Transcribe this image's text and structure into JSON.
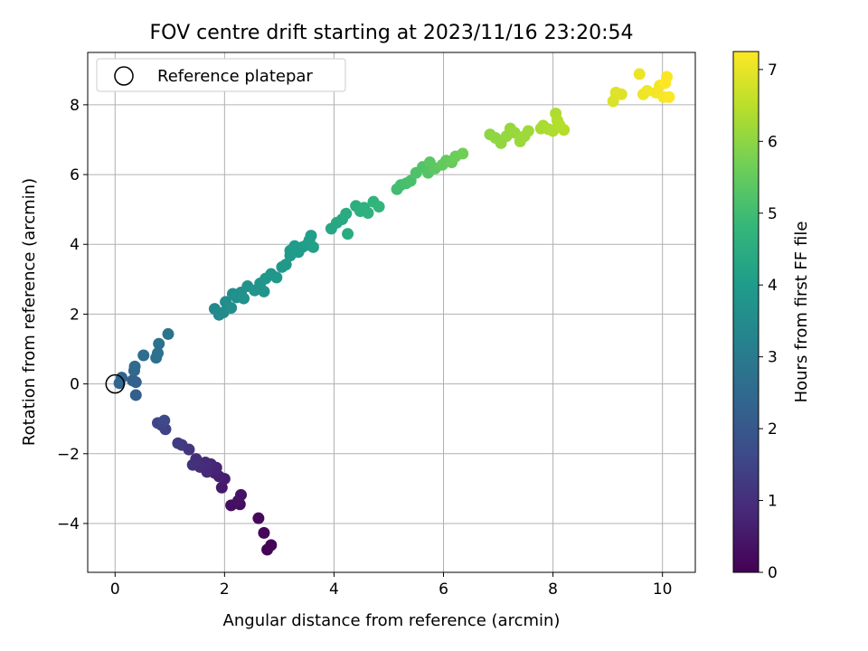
{
  "chart_data": {
    "type": "scatter",
    "title": "FOV centre drift starting at 2023/11/16 23:20:54",
    "xlabel": "Angular distance from reference (arcmin)",
    "ylabel": "Rotation from reference (arcmin)",
    "xlim": [
      -0.5,
      10.6
    ],
    "ylim": [
      -5.4,
      9.5
    ],
    "xticks": [
      0,
      2,
      4,
      6,
      8,
      10
    ],
    "yticks": [
      -4,
      -2,
      0,
      2,
      4,
      6,
      8
    ],
    "xtick_labels": [
      "0",
      "2",
      "4",
      "6",
      "8",
      "10"
    ],
    "ytick_labels": [
      "−4",
      "−2",
      "0",
      "2",
      "4",
      "6",
      "8"
    ],
    "grid": true,
    "legend": {
      "placement": "top-left",
      "entries": [
        "Reference platepar"
      ]
    },
    "reference_point": {
      "x": 0,
      "y": 0,
      "label": "Reference platepar"
    },
    "colorbar": {
      "label": "Hours from first FF file",
      "colormap": "viridis",
      "range": [
        0,
        7.25
      ],
      "ticks": [
        0,
        1,
        2,
        3,
        4,
        5,
        6,
        7
      ],
      "tick_labels": [
        "0",
        "1",
        "2",
        "3",
        "4",
        "5",
        "6",
        "7"
      ]
    },
    "points": [
      {
        "x": 2.78,
        "y": -4.75,
        "h": 0.05
      },
      {
        "x": 2.85,
        "y": -4.62,
        "h": 0.08
      },
      {
        "x": 2.72,
        "y": -4.27,
        "h": 0.12
      },
      {
        "x": 2.62,
        "y": -3.85,
        "h": 0.18
      },
      {
        "x": 2.28,
        "y": -3.45,
        "h": 0.25
      },
      {
        "x": 2.12,
        "y": -3.48,
        "h": 0.3
      },
      {
        "x": 2.25,
        "y": -3.35,
        "h": 0.35
      },
      {
        "x": 2.3,
        "y": -3.18,
        "h": 0.4
      },
      {
        "x": 1.95,
        "y": -2.97,
        "h": 0.5
      },
      {
        "x": 2.0,
        "y": -2.72,
        "h": 0.6
      },
      {
        "x": 1.9,
        "y": -2.65,
        "h": 0.65
      },
      {
        "x": 1.82,
        "y": -2.55,
        "h": 0.7
      },
      {
        "x": 1.85,
        "y": -2.4,
        "h": 0.75
      },
      {
        "x": 1.75,
        "y": -2.3,
        "h": 0.8
      },
      {
        "x": 1.68,
        "y": -2.52,
        "h": 0.85
      },
      {
        "x": 1.65,
        "y": -2.25,
        "h": 0.9
      },
      {
        "x": 1.55,
        "y": -2.38,
        "h": 0.95
      },
      {
        "x": 1.48,
        "y": -2.15,
        "h": 1.0
      },
      {
        "x": 1.42,
        "y": -2.32,
        "h": 1.05
      },
      {
        "x": 1.35,
        "y": -1.88,
        "h": 1.15
      },
      {
        "x": 1.22,
        "y": -1.75,
        "h": 1.25
      },
      {
        "x": 1.15,
        "y": -1.7,
        "h": 1.3
      },
      {
        "x": 0.92,
        "y": -1.3,
        "h": 1.45
      },
      {
        "x": 0.85,
        "y": -1.18,
        "h": 1.5
      },
      {
        "x": 0.78,
        "y": -1.12,
        "h": 1.55
      },
      {
        "x": 0.9,
        "y": -1.05,
        "h": 1.6
      },
      {
        "x": 0.38,
        "y": -0.32,
        "h": 2.2
      },
      {
        "x": 0.38,
        "y": 0.05,
        "h": 2.25
      },
      {
        "x": 0.32,
        "y": 0.1,
        "h": 2.3
      },
      {
        "x": 0.12,
        "y": 0.18,
        "h": 2.35
      },
      {
        "x": 0.08,
        "y": 0.02,
        "h": 2.4
      },
      {
        "x": 0.35,
        "y": 0.38,
        "h": 2.45
      },
      {
        "x": 0.36,
        "y": 0.5,
        "h": 2.5
      },
      {
        "x": 0.52,
        "y": 0.82,
        "h": 2.6
      },
      {
        "x": 0.75,
        "y": 0.75,
        "h": 2.7
      },
      {
        "x": 0.78,
        "y": 0.88,
        "h": 2.72
      },
      {
        "x": 0.8,
        "y": 1.15,
        "h": 2.75
      },
      {
        "x": 0.97,
        "y": 1.43,
        "h": 2.8
      },
      {
        "x": 1.82,
        "y": 2.15,
        "h": 3.4
      },
      {
        "x": 1.9,
        "y": 1.98,
        "h": 3.45
      },
      {
        "x": 1.98,
        "y": 2.05,
        "h": 3.5
      },
      {
        "x": 2.02,
        "y": 2.35,
        "h": 3.55
      },
      {
        "x": 2.12,
        "y": 2.18,
        "h": 3.6
      },
      {
        "x": 2.15,
        "y": 2.58,
        "h": 3.62
      },
      {
        "x": 2.22,
        "y": 2.48,
        "h": 3.65
      },
      {
        "x": 2.3,
        "y": 2.62,
        "h": 3.68
      },
      {
        "x": 2.35,
        "y": 2.45,
        "h": 3.7
      },
      {
        "x": 2.42,
        "y": 2.8,
        "h": 3.72
      },
      {
        "x": 2.55,
        "y": 2.68,
        "h": 3.75
      },
      {
        "x": 2.65,
        "y": 2.88,
        "h": 3.78
      },
      {
        "x": 2.72,
        "y": 2.65,
        "h": 3.8
      },
      {
        "x": 2.75,
        "y": 3.02,
        "h": 3.82
      },
      {
        "x": 2.85,
        "y": 3.15,
        "h": 3.85
      },
      {
        "x": 2.95,
        "y": 3.05,
        "h": 3.88
      },
      {
        "x": 3.05,
        "y": 3.35,
        "h": 3.9
      },
      {
        "x": 3.12,
        "y": 3.42,
        "h": 3.92
      },
      {
        "x": 3.2,
        "y": 3.68,
        "h": 3.95
      },
      {
        "x": 3.2,
        "y": 3.82,
        "h": 3.97
      },
      {
        "x": 3.28,
        "y": 3.95,
        "h": 4.0
      },
      {
        "x": 3.35,
        "y": 3.78,
        "h": 4.02
      },
      {
        "x": 3.42,
        "y": 3.92,
        "h": 4.04
      },
      {
        "x": 3.5,
        "y": 3.98,
        "h": 4.06
      },
      {
        "x": 3.55,
        "y": 4.12,
        "h": 4.08
      },
      {
        "x": 3.58,
        "y": 4.25,
        "h": 4.1
      },
      {
        "x": 3.62,
        "y": 3.92,
        "h": 4.12
      },
      {
        "x": 3.95,
        "y": 4.45,
        "h": 4.3
      },
      {
        "x": 4.05,
        "y": 4.62,
        "h": 4.35
      },
      {
        "x": 4.15,
        "y": 4.72,
        "h": 4.4
      },
      {
        "x": 4.22,
        "y": 4.88,
        "h": 4.45
      },
      {
        "x": 4.25,
        "y": 4.3,
        "h": 4.48
      },
      {
        "x": 4.4,
        "y": 5.1,
        "h": 4.55
      },
      {
        "x": 4.48,
        "y": 4.95,
        "h": 4.6
      },
      {
        "x": 4.55,
        "y": 5.05,
        "h": 4.62
      },
      {
        "x": 4.62,
        "y": 4.9,
        "h": 4.65
      },
      {
        "x": 4.72,
        "y": 5.22,
        "h": 4.7
      },
      {
        "x": 4.82,
        "y": 5.08,
        "h": 4.75
      },
      {
        "x": 5.15,
        "y": 5.58,
        "h": 5.0
      },
      {
        "x": 5.22,
        "y": 5.7,
        "h": 5.05
      },
      {
        "x": 5.32,
        "y": 5.75,
        "h": 5.1
      },
      {
        "x": 5.4,
        "y": 5.82,
        "h": 5.15
      },
      {
        "x": 5.5,
        "y": 6.05,
        "h": 5.2
      },
      {
        "x": 5.62,
        "y": 6.22,
        "h": 5.25
      },
      {
        "x": 5.72,
        "y": 6.05,
        "h": 5.3
      },
      {
        "x": 5.75,
        "y": 6.35,
        "h": 5.35
      },
      {
        "x": 5.85,
        "y": 6.18,
        "h": 5.4
      },
      {
        "x": 5.98,
        "y": 6.28,
        "h": 5.45
      },
      {
        "x": 6.05,
        "y": 6.4,
        "h": 5.5
      },
      {
        "x": 6.15,
        "y": 6.35,
        "h": 5.55
      },
      {
        "x": 6.22,
        "y": 6.52,
        "h": 5.6
      },
      {
        "x": 6.35,
        "y": 6.6,
        "h": 5.65
      },
      {
        "x": 6.85,
        "y": 7.15,
        "h": 6.0
      },
      {
        "x": 6.95,
        "y": 7.05,
        "h": 6.03
      },
      {
        "x": 7.05,
        "y": 6.9,
        "h": 6.05
      },
      {
        "x": 7.15,
        "y": 7.1,
        "h": 6.08
      },
      {
        "x": 7.22,
        "y": 7.32,
        "h": 6.1
      },
      {
        "x": 7.3,
        "y": 7.2,
        "h": 6.12
      },
      {
        "x": 7.4,
        "y": 6.95,
        "h": 6.15
      },
      {
        "x": 7.48,
        "y": 7.1,
        "h": 6.18
      },
      {
        "x": 7.55,
        "y": 7.25,
        "h": 6.2
      },
      {
        "x": 7.78,
        "y": 7.32,
        "h": 6.28
      },
      {
        "x": 7.82,
        "y": 7.4,
        "h": 6.3
      },
      {
        "x": 7.92,
        "y": 7.3,
        "h": 6.33
      },
      {
        "x": 8.0,
        "y": 7.25,
        "h": 6.36
      },
      {
        "x": 8.05,
        "y": 7.75,
        "h": 6.38
      },
      {
        "x": 8.08,
        "y": 7.55,
        "h": 6.4
      },
      {
        "x": 8.12,
        "y": 7.42,
        "h": 6.42
      },
      {
        "x": 8.2,
        "y": 7.28,
        "h": 6.45
      },
      {
        "x": 9.1,
        "y": 8.1,
        "h": 6.85
      },
      {
        "x": 9.15,
        "y": 8.35,
        "h": 6.88
      },
      {
        "x": 9.25,
        "y": 8.3,
        "h": 6.9
      },
      {
        "x": 9.58,
        "y": 8.88,
        "h": 7.05
      },
      {
        "x": 9.65,
        "y": 8.3,
        "h": 7.07
      },
      {
        "x": 9.72,
        "y": 8.4,
        "h": 7.1
      },
      {
        "x": 9.88,
        "y": 8.35,
        "h": 7.13
      },
      {
        "x": 9.95,
        "y": 8.55,
        "h": 7.15
      },
      {
        "x": 10.02,
        "y": 8.22,
        "h": 7.18
      },
      {
        "x": 10.08,
        "y": 8.8,
        "h": 7.2
      },
      {
        "x": 10.12,
        "y": 8.22,
        "h": 7.22
      },
      {
        "x": 10.05,
        "y": 8.62,
        "h": 7.25
      }
    ]
  }
}
